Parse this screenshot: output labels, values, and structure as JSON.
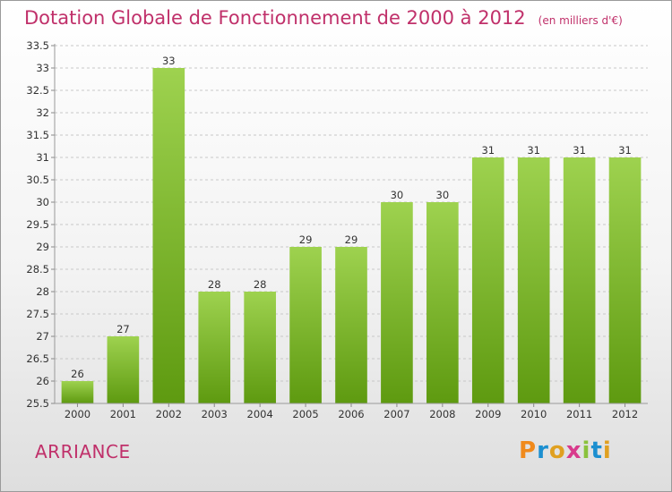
{
  "header": {
    "title": "Dotation Globale de Fonctionnement de 2000 à 2012",
    "unit": "(en milliers d'€)"
  },
  "footer": {
    "commune": "ARRIANCE",
    "logo_text": "Proxiti"
  },
  "colors": {
    "title": "#c0306a",
    "bar_light": "#9ed24f",
    "bar_dark": "#5e9a10",
    "grid": "#c8c8c8",
    "logo_letters": [
      "#f08a1c",
      "#1c8fd0",
      "#e0a020",
      "#d83a8c",
      "#8ac23c",
      "#1c8fd0",
      "#e0a020"
    ]
  },
  "chart_data": {
    "type": "bar",
    "categories": [
      "2000",
      "2001",
      "2002",
      "2003",
      "2004",
      "2005",
      "2006",
      "2007",
      "2008",
      "2009",
      "2010",
      "2011",
      "2012"
    ],
    "values": [
      26,
      27,
      33,
      28,
      28,
      29,
      29,
      30,
      30,
      31,
      31,
      31,
      31
    ],
    "ylim": [
      25.5,
      33.5
    ],
    "yticks": [
      "25.5",
      "26",
      "26.5",
      "27",
      "27.5",
      "28",
      "28.5",
      "29",
      "29.5",
      "30",
      "30.5",
      "31",
      "31.5",
      "32",
      "32.5",
      "33",
      "33.5"
    ],
    "grid": "horizontal dashed",
    "title": "Dotation Globale de Fonctionnement de 2000 à 2012",
    "xlabel": "",
    "ylabel": ""
  }
}
